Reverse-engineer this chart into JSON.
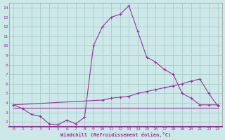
{
  "xlabel": "Windchill (Refroidissement éolien,°C)",
  "line_color": "#993399",
  "bg_color": "#cce8e8",
  "grid_color": "#aacccc",
  "xlim": [
    -0.5,
    23.5
  ],
  "ylim": [
    1.5,
    14.5
  ],
  "yticks": [
    2,
    3,
    4,
    5,
    6,
    7,
    8,
    9,
    10,
    11,
    12,
    13,
    14
  ],
  "xticks": [
    0,
    1,
    2,
    3,
    4,
    5,
    6,
    7,
    8,
    9,
    10,
    11,
    12,
    13,
    14,
    15,
    16,
    17,
    18,
    19,
    20,
    21,
    22,
    23
  ],
  "series1_x": [
    0,
    1,
    2,
    3,
    4,
    5,
    6,
    7,
    8,
    9,
    10,
    11,
    12,
    13,
    14,
    15,
    16,
    17,
    18,
    19,
    20,
    21,
    22,
    23
  ],
  "series1_y": [
    3.8,
    3.4,
    2.8,
    2.6,
    1.8,
    1.7,
    2.2,
    1.8,
    2.5,
    10.0,
    12.0,
    13.0,
    13.3,
    14.2,
    11.5,
    8.8,
    8.3,
    7.5,
    7.0,
    5.0,
    4.5,
    3.8,
    3.8,
    3.8
  ],
  "series2_x": [
    0,
    10,
    11,
    12,
    13,
    14,
    15,
    16,
    17,
    18,
    19,
    20,
    21,
    22,
    23
  ],
  "series2_y": [
    3.8,
    4.3,
    4.5,
    4.6,
    4.7,
    5.0,
    5.2,
    5.4,
    5.6,
    5.8,
    6.0,
    6.3,
    6.5,
    5.0,
    3.7
  ],
  "series3_x": [
    0,
    23
  ],
  "series3_y": [
    3.5,
    3.5
  ]
}
